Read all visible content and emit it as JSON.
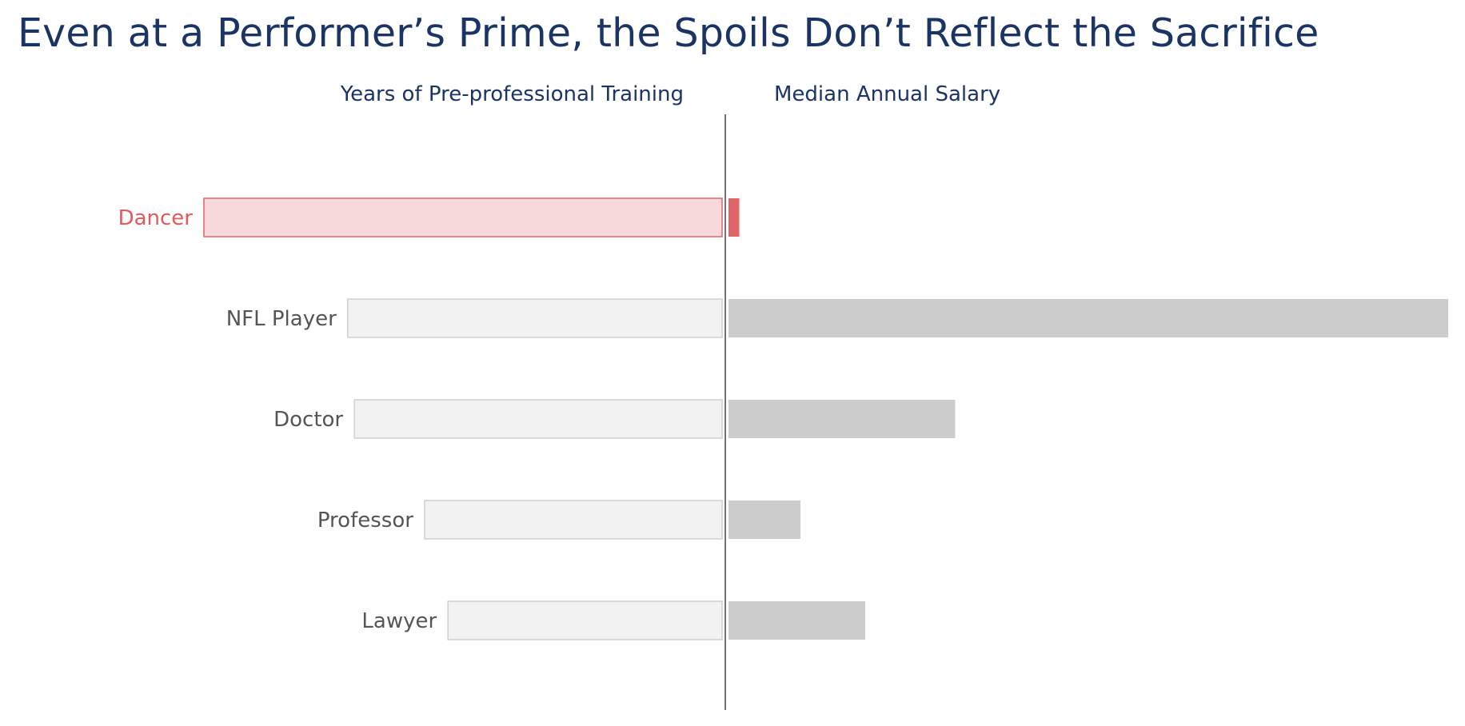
{
  "page": {
    "title": "Even at a Performer’s Prime, the Spoils Don’t Reflect the Sacrifice"
  },
  "colors": {
    "title": "#1b3466",
    "highlight_text": "#e05a5e",
    "highlight_fill_light": "#f8d9db",
    "highlight_fill_solid": "#e06468",
    "normal_text": "#555555",
    "normal_fill_light": "#f2f2f2",
    "normal_stroke_light": "#d0d0d0",
    "normal_fill_solid": "#cccccc",
    "divider": "#444444"
  },
  "chart_data": {
    "type": "bar",
    "layout": "diverging-butterfly",
    "categories": [
      "Dancer",
      "NFL Player",
      "Doctor",
      "Professor",
      "Lawyer"
    ],
    "highlight": "Dancer",
    "series": [
      {
        "name": "Years of Pre-professional Training",
        "direction": "left",
        "values": [
          15.5,
          11.2,
          11.0,
          8.9,
          8.2
        ]
      },
      {
        "name": "Median Annual Salary",
        "direction": "right",
        "values": [
          15000,
          1000000,
          315000,
          100000,
          190000
        ]
      }
    ],
    "xlim_left": [
      0,
      15.5
    ],
    "xlim_right": [
      0,
      1000000
    ],
    "grid": false,
    "legend": "none"
  }
}
